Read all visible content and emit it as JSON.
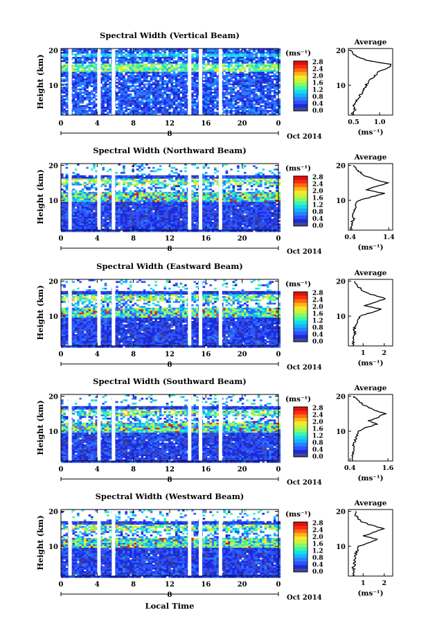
{
  "figure": {
    "x_axis_label": "Local Time",
    "date_label": "Oct 2014",
    "day_marker": "8",
    "colorbar_units": "(ms⁻¹)",
    "avg_units": "(ms⁻¹)",
    "avg_title": "Average",
    "y_axis_label": "Height (km)",
    "palette": [
      "#404898",
      "#1c2ad8",
      "#2e52ff",
      "#2a80ff",
      "#14b4ff",
      "#16dcea",
      "#3ef5b0",
      "#86fa64",
      "#c8f43a",
      "#f6e82c",
      "#ffb418",
      "#ff6a14",
      "#ff2a10",
      "#e0100c"
    ]
  },
  "chart_data": [
    {
      "type": "heatmap",
      "title": "Spectral Width (Vertical Beam)",
      "x_ticks": [
        "0",
        "4",
        "8",
        "12",
        "16",
        "20",
        "0"
      ],
      "xlim": [
        0,
        24
      ],
      "y_ticks": [
        "10",
        "20"
      ],
      "ylim": [
        1.5,
        20.5
      ],
      "colorbar_ticks": [
        "0.0",
        "0.4",
        "0.8",
        "1.2",
        "1.6",
        "2.0",
        "2.4",
        "2.8"
      ],
      "data_gaps_hours": [
        1.0,
        4.2,
        5.8,
        14.2,
        15.4,
        17.6
      ],
      "profile": {
        "xticks": [
          "0.5",
          "1.0"
        ],
        "xlim": [
          0.4,
          1.25
        ],
        "heights": [
          1.5,
          2,
          3,
          4,
          5,
          6,
          7,
          8,
          9,
          10,
          11,
          12,
          13,
          14,
          15,
          16,
          17,
          18,
          19,
          20
        ],
        "values": [
          0.5,
          0.47,
          0.52,
          0.5,
          0.54,
          0.57,
          0.62,
          0.66,
          0.7,
          0.74,
          0.78,
          0.85,
          0.92,
          1.0,
          1.18,
          1.2,
          0.78,
          0.6,
          0.48,
          0.45
        ]
      }
    },
    {
      "type": "heatmap",
      "title": "Spectral Width (Northward Beam)",
      "x_ticks": [
        "0",
        "4",
        "8",
        "12",
        "16",
        "20",
        "0"
      ],
      "xlim": [
        0,
        24
      ],
      "y_ticks": [
        "10",
        "20"
      ],
      "ylim": [
        1.5,
        20.5
      ],
      "colorbar_ticks": [
        "0.0",
        "0.4",
        "0.8",
        "1.2",
        "1.6",
        "2.0",
        "2.4",
        "2.8"
      ],
      "data_gaps_hours": [
        1.0,
        4.2,
        5.8,
        14.2,
        15.4,
        17.6
      ],
      "profile": {
        "xticks": [
          "0.4",
          "1.4"
        ],
        "xlim": [
          0.35,
          1.5
        ],
        "heights": [
          1.5,
          2,
          3,
          4,
          5,
          6,
          7,
          8,
          9,
          10,
          11,
          12,
          13,
          14,
          15,
          16,
          17,
          18,
          19,
          20
        ],
        "values": [
          0.45,
          0.44,
          0.47,
          0.45,
          0.5,
          0.47,
          0.5,
          0.52,
          0.55,
          0.62,
          0.95,
          1.3,
          0.8,
          1.1,
          1.35,
          1.05,
          0.75,
          0.65,
          0.55,
          0.5
        ]
      }
    },
    {
      "type": "heatmap",
      "title": "Spectral Width (Eastward Beam)",
      "x_ticks": [
        "0",
        "4",
        "8",
        "12",
        "16",
        "20",
        "0"
      ],
      "xlim": [
        0,
        24
      ],
      "y_ticks": [
        "10",
        "20"
      ],
      "ylim": [
        1.5,
        20.5
      ],
      "colorbar_ticks": [
        "0.0",
        "0.4",
        "0.8",
        "1.2",
        "1.6",
        "2.0",
        "2.4",
        "2.8"
      ],
      "data_gaps_hours": [
        1.0,
        4.2,
        5.8,
        14.2,
        15.4,
        17.6
      ],
      "profile": {
        "xticks": [
          "1",
          "2"
        ],
        "xlim": [
          0.3,
          2.4
        ],
        "heights": [
          1.5,
          2,
          3,
          4,
          5,
          6,
          7,
          8,
          9,
          10,
          11,
          12,
          13,
          14,
          15,
          16,
          17,
          18,
          19,
          20
        ],
        "values": [
          0.55,
          0.5,
          0.55,
          0.52,
          0.6,
          0.58,
          0.62,
          0.68,
          0.75,
          0.85,
          1.4,
          1.8,
          1.1,
          1.6,
          2.1,
          1.5,
          1.0,
          0.85,
          0.7,
          0.65
        ]
      }
    },
    {
      "type": "heatmap",
      "title": "Spectral Width (Southward Beam)",
      "x_ticks": [
        "0",
        "4",
        "8",
        "12",
        "16",
        "20",
        "0"
      ],
      "xlim": [
        0,
        24
      ],
      "y_ticks": [
        "10",
        "20"
      ],
      "ylim": [
        1.5,
        20.5
      ],
      "colorbar_ticks": [
        "0.0",
        "0.4",
        "0.8",
        "1.2",
        "1.6",
        "2.0",
        "2.4",
        "2.8"
      ],
      "data_gaps_hours": [
        1.0,
        4.2,
        5.8,
        14.2,
        15.4,
        17.6
      ],
      "profile": {
        "xticks": [
          "0.4",
          "1.6"
        ],
        "xlim": [
          0.35,
          1.75
        ],
        "heights": [
          1.5,
          2,
          3,
          4,
          5,
          6,
          7,
          8,
          9,
          10,
          11,
          12,
          13,
          14,
          15,
          16,
          17,
          18,
          19,
          20
        ],
        "values": [
          0.48,
          0.46,
          0.5,
          0.48,
          0.52,
          0.5,
          0.54,
          0.58,
          0.62,
          0.7,
          0.9,
          1.25,
          1.0,
          1.3,
          1.5,
          1.2,
          0.95,
          0.75,
          0.6,
          0.52
        ]
      }
    },
    {
      "type": "heatmap",
      "title": "Spectral Width (Westward Beam)",
      "x_ticks": [
        "0",
        "4",
        "8",
        "12",
        "16",
        "20",
        "0"
      ],
      "xlim": [
        0,
        24
      ],
      "y_ticks": [
        "10",
        "20"
      ],
      "ylim": [
        1.5,
        20.5
      ],
      "colorbar_ticks": [
        "0.0",
        "0.4",
        "0.8",
        "1.2",
        "1.6",
        "2.0",
        "2.4",
        "2.8"
      ],
      "data_gaps_hours": [
        1.0,
        4.2,
        5.8,
        14.2,
        15.4,
        17.6
      ],
      "profile": {
        "xticks": [
          "1",
          "2"
        ],
        "xlim": [
          0.3,
          2.4
        ],
        "heights": [
          1.5,
          2,
          3,
          4,
          5,
          6,
          7,
          8,
          9,
          10,
          11,
          12,
          13,
          14,
          15,
          16,
          17,
          18,
          19,
          20
        ],
        "values": [
          0.55,
          0.52,
          0.56,
          0.54,
          0.6,
          0.58,
          0.62,
          0.66,
          0.72,
          0.8,
          1.2,
          1.7,
          1.0,
          1.5,
          2.0,
          1.4,
          0.9,
          0.75,
          0.65,
          0.6
        ]
      }
    }
  ]
}
